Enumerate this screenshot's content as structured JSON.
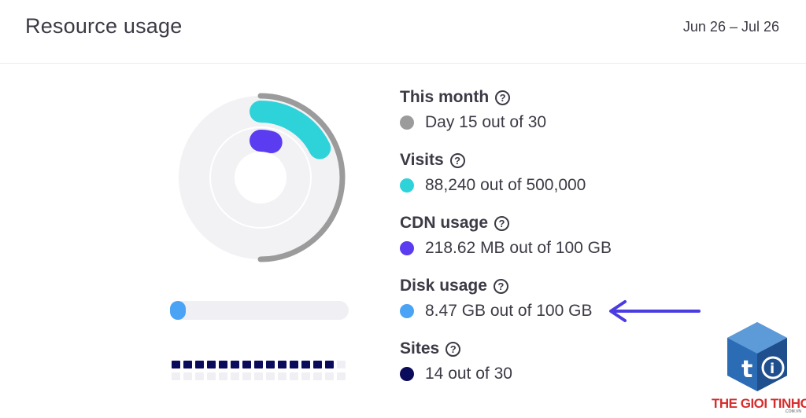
{
  "header": {
    "title": "Resource usage",
    "date_range": "Jun 26 – Jul 26"
  },
  "stats": [
    {
      "label": "This month",
      "value": "Day 15 out of 30",
      "color": "#9b9b9b"
    },
    {
      "label": "Visits",
      "value": "88,240 out of 500,000",
      "color": "#2ed3d9"
    },
    {
      "label": "CDN usage",
      "value": "218.62 MB out of 100 GB",
      "color": "#5b3cf0"
    },
    {
      "label": "Disk usage",
      "value": "8.47 GB out of 100 GB",
      "color": "#4aa3f4"
    },
    {
      "label": "Sites",
      "value": "14 out of 30",
      "color": "#0b0b5c"
    }
  ],
  "usage_fractions": {
    "month": 0.5,
    "visits": 0.1765,
    "cdn": 0.0021,
    "disk": 0.0847,
    "sites_used": 14,
    "sites_total": 30
  },
  "icons": {
    "help": "question-circle-icon",
    "arrow": "arrow-left-icon",
    "logo": "the-gioi-tinhoc-logo"
  },
  "logo": {
    "text": "THE GIOI TINHOC",
    "sub": ".COM.VN"
  }
}
